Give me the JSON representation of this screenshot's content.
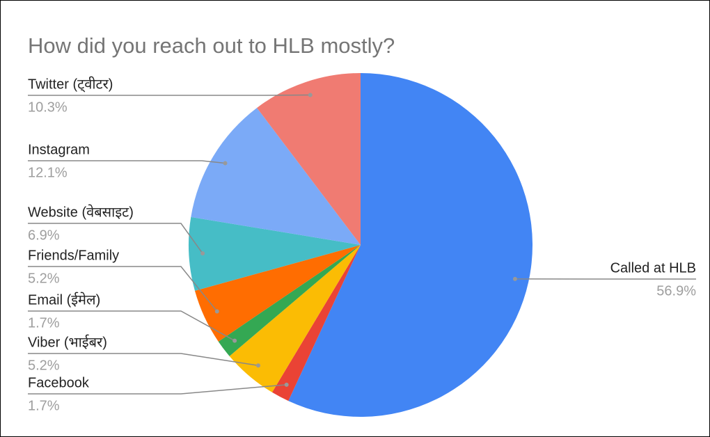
{
  "chart_data": {
    "type": "pie",
    "title": "How did you reach out to HLB mostly?",
    "categories": [
      "Called at HLB",
      "Facebook",
      "Viber (भाईबर)",
      "Email (ईमेल)",
      "Friends/Family",
      "Website (वेबसाइट)",
      "Instagram",
      "Twitter (ट्वीटर)"
    ],
    "values": [
      56.9,
      1.7,
      5.2,
      1.7,
      5.2,
      6.9,
      12.1,
      10.3
    ],
    "value_labels": [
      "56.9%",
      "1.7%",
      "5.2%",
      "1.7%",
      "5.2%",
      "6.9%",
      "12.1%",
      "10.3%"
    ],
    "colors": [
      "#4285f4",
      "#ea4335",
      "#fbbc04",
      "#34a853",
      "#ff6d01",
      "#46bdc6",
      "#7baaf7",
      "#f07b72"
    ]
  }
}
